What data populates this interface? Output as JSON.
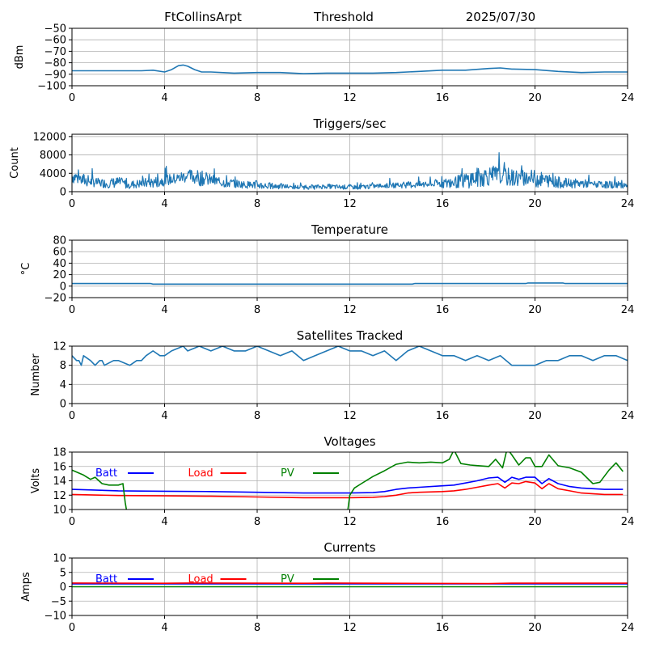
{
  "header": {
    "station": "FtCollinsArpt",
    "label": "Threshold",
    "date": "2025/07/30"
  },
  "colors": {
    "series": "#1f77b4",
    "batt": "#0000ff",
    "load": "#ff0000",
    "pv": "#008000"
  },
  "chart_data": [
    {
      "id": "threshold",
      "type": "line",
      "title": "",
      "ylabel": "dBm",
      "xlim": [
        0,
        24
      ],
      "xticks": [
        0,
        4,
        8,
        12,
        16,
        20,
        24
      ],
      "ylim": [
        -100,
        -50
      ],
      "yticks": [
        -100,
        -90,
        -80,
        -70,
        -60,
        -50
      ],
      "yticklabels": [
        "−100",
        "−90",
        "−80",
        "−70",
        "−60",
        "−50"
      ],
      "grid": true,
      "series": [
        {
          "x": [
            0,
            1,
            2,
            3,
            3.5,
            4,
            4.3,
            4.6,
            4.8,
            5.0,
            5.3,
            5.6,
            6,
            7,
            8,
            9,
            10,
            11,
            12,
            13,
            14,
            15,
            16,
            17,
            18,
            18.5,
            19,
            20,
            21,
            22,
            23,
            24
          ],
          "y": [
            -87,
            -87,
            -87,
            -87,
            -86.5,
            -88,
            -86,
            -82.5,
            -82,
            -83,
            -86,
            -88,
            -88,
            -89,
            -88.5,
            -88.5,
            -89.5,
            -89,
            -89,
            -89,
            -88.5,
            -87.5,
            -86.5,
            -86.5,
            -85,
            -84.5,
            -85.5,
            -86,
            -87.5,
            -88.5,
            -88,
            -88
          ]
        }
      ]
    },
    {
      "id": "triggers",
      "type": "line",
      "title": "Triggers/sec",
      "ylabel": "Count",
      "xlim": [
        0,
        24
      ],
      "xticks": [
        0,
        4,
        8,
        12,
        16,
        20,
        24
      ],
      "ylim": [
        0,
        12500
      ],
      "yticks": [
        0,
        4000,
        8000,
        12000
      ],
      "yticklabels": [
        "0",
        "4000",
        "8000",
        "12000"
      ],
      "grid": true,
      "series": [
        {
          "x": [
            0,
            0.5,
            1,
            1.5,
            2,
            2.5,
            3,
            3.5,
            4,
            4.5,
            5,
            5.5,
            6,
            6.5,
            7,
            7.5,
            8,
            8.5,
            9,
            9.5,
            10,
            10.5,
            11,
            11.5,
            12,
            12.5,
            13,
            13.5,
            14,
            14.5,
            15,
            15.5,
            16,
            16.5,
            17,
            17.5,
            18,
            18.5,
            19,
            19.5,
            20,
            20.5,
            21,
            21.5,
            22,
            22.5,
            23,
            23.5,
            24
          ],
          "y": [
            3500,
            2500,
            2000,
            1800,
            2000,
            1500,
            1800,
            2000,
            2500,
            2800,
            3500,
            3000,
            2500,
            2000,
            1800,
            1500,
            1500,
            1200,
            1200,
            1000,
            1000,
            1000,
            1200,
            1000,
            1000,
            1000,
            1200,
            1300,
            1400,
            1500,
            1500,
            1600,
            1800,
            2000,
            2500,
            3000,
            3500,
            3500,
            3000,
            3000,
            2800,
            2500,
            2000,
            1800,
            1800,
            1600,
            1500,
            1500,
            1500
          ],
          "noise_amp": [
            3500,
            3000,
            2000,
            2000,
            2500,
            1800,
            2000,
            2500,
            2500,
            2500,
            3000,
            3500,
            2500,
            2200,
            2000,
            1500,
            2000,
            1500,
            1200,
            1000,
            1000,
            1000,
            1000,
            1000,
            1000,
            1000,
            1000,
            1000,
            1200,
            1500,
            1500,
            1600,
            2000,
            2500,
            3500,
            4500,
            4500,
            4000,
            4000,
            3500,
            4000,
            3000,
            2500,
            2000,
            2000,
            1500,
            1500,
            1500,
            1500
          ]
        }
      ]
    },
    {
      "id": "temperature",
      "type": "line",
      "title": "Temperature",
      "ylabel": "°C",
      "xlim": [
        0,
        24
      ],
      "xticks": [
        0,
        4,
        8,
        12,
        16,
        20,
        24
      ],
      "ylim": [
        -20,
        80
      ],
      "yticks": [
        -20,
        0,
        20,
        40,
        60,
        80
      ],
      "yticklabels": [
        "−20",
        "0",
        "20",
        "40",
        "60",
        "80"
      ],
      "grid": true,
      "series": [
        {
          "x": [
            0,
            3.4,
            3.5,
            14.7,
            14.8,
            19.6,
            19.7,
            21.2,
            21.3,
            24
          ],
          "y": [
            4.5,
            4.5,
            3.5,
            3.5,
            4.5,
            4.5,
            5.5,
            5.5,
            4.5,
            4.5
          ]
        }
      ]
    },
    {
      "id": "satellites",
      "type": "line",
      "title": "Satellites Tracked",
      "ylabel": "Number",
      "xlim": [
        0,
        24
      ],
      "xticks": [
        0,
        4,
        8,
        12,
        16,
        20,
        24
      ],
      "ylim": [
        0,
        12
      ],
      "yticks": [
        0,
        4,
        8,
        12
      ],
      "yticklabels": [
        "0",
        "4",
        "8",
        "12"
      ],
      "grid": true,
      "series": [
        {
          "x": [
            0,
            0.2,
            0.3,
            0.4,
            0.5,
            0.8,
            1.0,
            1.2,
            1.3,
            1.4,
            1.8,
            2.0,
            2.5,
            2.8,
            3.0,
            3.2,
            3.5,
            3.8,
            4.0,
            4.3,
            4.8,
            5.0,
            5.5,
            6.0,
            6.5,
            7.0,
            7.5,
            8.0,
            8.5,
            9.0,
            9.5,
            10.0,
            10.5,
            11.0,
            11.5,
            12.0,
            12.5,
            13.0,
            13.5,
            14.0,
            14.5,
            15.0,
            15.5,
            16.0,
            16.5,
            17.0,
            17.5,
            18.0,
            18.5,
            19.0,
            19.5,
            20.0,
            20.5,
            21.0,
            21.5,
            22.0,
            22.5,
            23.0,
            23.5,
            24.0
          ],
          "y": [
            10,
            9,
            9,
            8,
            10,
            9,
            8,
            9,
            9,
            8,
            9,
            9,
            8,
            9,
            9,
            10,
            11,
            10,
            10,
            11,
            12,
            11,
            12,
            11,
            12,
            11,
            11,
            12,
            11,
            10,
            11,
            9,
            10,
            11,
            12,
            11,
            11,
            10,
            11,
            9,
            11,
            12,
            11,
            10,
            10,
            9,
            10,
            9,
            10,
            8,
            8,
            8,
            9,
            9,
            10,
            10,
            9,
            10,
            10,
            9
          ]
        }
      ]
    },
    {
      "id": "voltages",
      "type": "line",
      "title": "Voltages",
      "ylabel": "Volts",
      "xlim": [
        0,
        24
      ],
      "xticks": [
        0,
        4,
        8,
        12,
        16,
        20,
        24
      ],
      "ylim": [
        10,
        18
      ],
      "yticks": [
        10,
        12,
        14,
        16,
        18
      ],
      "yticklabels": [
        "10",
        "12",
        "14",
        "16",
        "18"
      ],
      "grid": true,
      "series": [
        {
          "name": "Batt",
          "color_key": "batt",
          "x": [
            0,
            2,
            4,
            6,
            8,
            10,
            12,
            13,
            13.5,
            14,
            14.5,
            15,
            16,
            16.5,
            17,
            17.5,
            18,
            18.4,
            18.7,
            19.0,
            19.3,
            19.6,
            20.0,
            20.3,
            20.6,
            21.0,
            21.5,
            22.0,
            23.0,
            23.8
          ],
          "y": [
            12.8,
            12.6,
            12.55,
            12.5,
            12.4,
            12.3,
            12.3,
            12.35,
            12.5,
            12.8,
            13.0,
            13.1,
            13.3,
            13.4,
            13.7,
            14.0,
            14.4,
            14.5,
            13.8,
            14.5,
            14.2,
            14.5,
            14.5,
            13.6,
            14.3,
            13.6,
            13.2,
            13.0,
            12.8,
            12.8
          ]
        },
        {
          "name": "Load",
          "color_key": "load",
          "x": [
            0,
            2,
            4,
            6,
            8,
            10,
            12,
            13,
            13.5,
            14,
            14.5,
            15,
            16,
            16.5,
            17,
            17.5,
            18,
            18.4,
            18.7,
            19.0,
            19.3,
            19.6,
            20.0,
            20.3,
            20.6,
            21.0,
            21.5,
            22.0,
            23.0,
            23.8
          ],
          "y": [
            12.1,
            11.95,
            11.9,
            11.85,
            11.75,
            11.65,
            11.65,
            11.7,
            11.8,
            12.0,
            12.3,
            12.4,
            12.5,
            12.6,
            12.8,
            13.1,
            13.4,
            13.6,
            13.0,
            13.7,
            13.6,
            13.9,
            13.7,
            12.9,
            13.6,
            12.9,
            12.6,
            12.3,
            12.1,
            12.1
          ]
        },
        {
          "name": "PV",
          "color_key": "pv",
          "x": [
            0,
            0.5,
            0.8,
            1.0,
            1.3,
            1.6,
            2.0,
            2.2,
            2.3,
            2.35,
            2.4
          ],
          "y": [
            15.5,
            14.8,
            14.2,
            14.5,
            13.6,
            13.4,
            13.4,
            13.6,
            11.0,
            10.0,
            9.5
          ]
        },
        {
          "name": "PV",
          "color_key": "pv",
          "x": [
            11.9,
            12.0,
            12.2,
            12.5,
            13.0,
            13.5,
            14.0,
            14.5,
            15.0,
            15.5,
            16.0,
            16.3,
            16.5,
            16.8,
            17.2,
            17.6,
            18.0,
            18.3,
            18.6,
            18.8,
            19.0,
            19.3,
            19.6,
            19.8,
            20.0,
            20.3,
            20.6,
            21.0,
            21.5,
            22.0,
            22.5,
            22.8,
            23.2,
            23.5,
            23.8
          ],
          "y": [
            9.5,
            12.0,
            13.0,
            13.6,
            14.6,
            15.4,
            16.3,
            16.6,
            16.5,
            16.6,
            16.5,
            17.0,
            18.3,
            16.4,
            16.2,
            16.1,
            16.0,
            17.0,
            15.8,
            18.5,
            17.6,
            16.2,
            17.2,
            17.2,
            16.0,
            16.0,
            17.6,
            16.1,
            15.8,
            15.2,
            13.6,
            13.8,
            15.5,
            16.5,
            15.3
          ]
        }
      ]
    },
    {
      "id": "currents",
      "type": "line",
      "title": "Currents",
      "ylabel": "Amps",
      "xlim": [
        0,
        24
      ],
      "xticks": [
        0,
        4,
        8,
        12,
        16,
        20,
        24
      ],
      "ylim": [
        -10,
        10
      ],
      "yticks": [
        -10,
        -5,
        0,
        5,
        10
      ],
      "yticklabels": [
        "−10",
        "−5",
        "0",
        "5",
        "10"
      ],
      "grid": true,
      "series": [
        {
          "name": "Batt",
          "color_key": "batt",
          "x": [
            0,
            24
          ],
          "y": [
            1.0,
            1.0
          ]
        },
        {
          "name": "Load",
          "color_key": "load",
          "x": [
            0,
            4,
            5,
            10,
            11,
            18,
            19,
            24
          ],
          "y": [
            1.3,
            1.2,
            1.3,
            1.2,
            1.3,
            1.1,
            1.25,
            1.25
          ]
        },
        {
          "name": "PV",
          "color_key": "pv",
          "x": [
            0,
            24
          ],
          "y": [
            0.0,
            0.0
          ]
        }
      ]
    }
  ]
}
